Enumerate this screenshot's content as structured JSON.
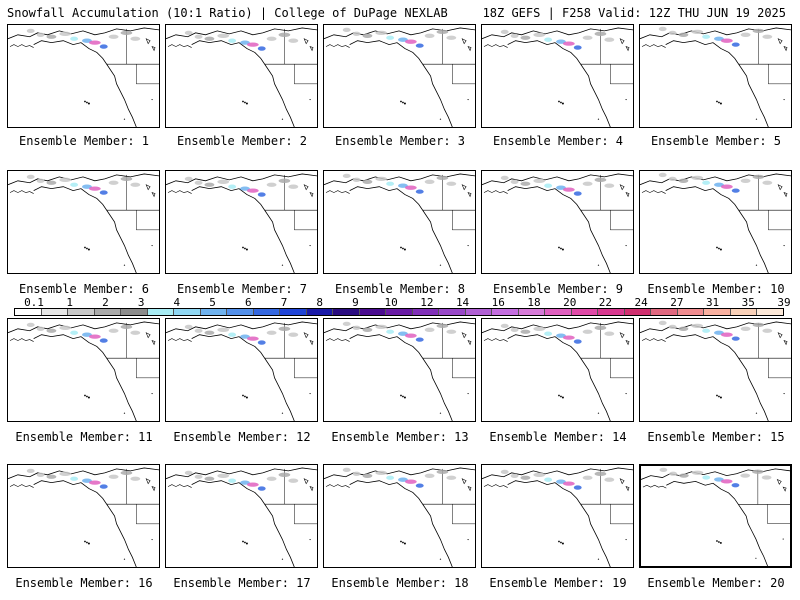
{
  "header": {
    "title": "Snowfall Accumulation (10:1 Ratio) | College of DuPage NEXLAB",
    "run_info": "18Z GEFS | F258 Valid: 12Z THU JUN 19 2025"
  },
  "panels": [
    {
      "label": "Ensemble Member: 1"
    },
    {
      "label": "Ensemble Member: 2"
    },
    {
      "label": "Ensemble Member: 3"
    },
    {
      "label": "Ensemble Member: 4"
    },
    {
      "label": "Ensemble Member: 5"
    },
    {
      "label": "Ensemble Member: 6"
    },
    {
      "label": "Ensemble Member: 7"
    },
    {
      "label": "Ensemble Member: 8"
    },
    {
      "label": "Ensemble Member: 9"
    },
    {
      "label": "Ensemble Member: 10"
    },
    {
      "label": "Ensemble Member: 11"
    },
    {
      "label": "Ensemble Member: 12"
    },
    {
      "label": "Ensemble Member: 13"
    },
    {
      "label": "Ensemble Member: 14"
    },
    {
      "label": "Ensemble Member: 15"
    },
    {
      "label": "Ensemble Member: 16"
    },
    {
      "label": "Ensemble Member: 17"
    },
    {
      "label": "Ensemble Member: 18"
    },
    {
      "label": "Ensemble Member: 19"
    },
    {
      "label": "Ensemble Member: 20"
    }
  ],
  "colorbar": {
    "tick_labels": [
      "0.1",
      "1",
      "2",
      "3",
      "4",
      "5",
      "6",
      "7",
      "8",
      "9",
      "10",
      "12",
      "14",
      "16",
      "18",
      "20",
      "22",
      "24",
      "27",
      "31",
      "35",
      "39"
    ],
    "colors": [
      "#ffffff",
      "#e6e6e6",
      "#c8c8c8",
      "#aaaaaa",
      "#8c8c8c",
      "#a8ecf4",
      "#8fd6f2",
      "#6fb2ee",
      "#5390ea",
      "#3568e0",
      "#1f44d6",
      "#1a1aa8",
      "#2a0c80",
      "#4a0c90",
      "#6a1ca6",
      "#8030b8",
      "#9848c8",
      "#b060d4",
      "#c46ee0",
      "#d67ad8",
      "#e060c0",
      "#e04aa8",
      "#d83890",
      "#d03070",
      "#e06880",
      "#f08c90",
      "#f8b0a0",
      "#f8d0b8",
      "#fce8d8"
    ]
  },
  "highlighted_panel": 20
}
